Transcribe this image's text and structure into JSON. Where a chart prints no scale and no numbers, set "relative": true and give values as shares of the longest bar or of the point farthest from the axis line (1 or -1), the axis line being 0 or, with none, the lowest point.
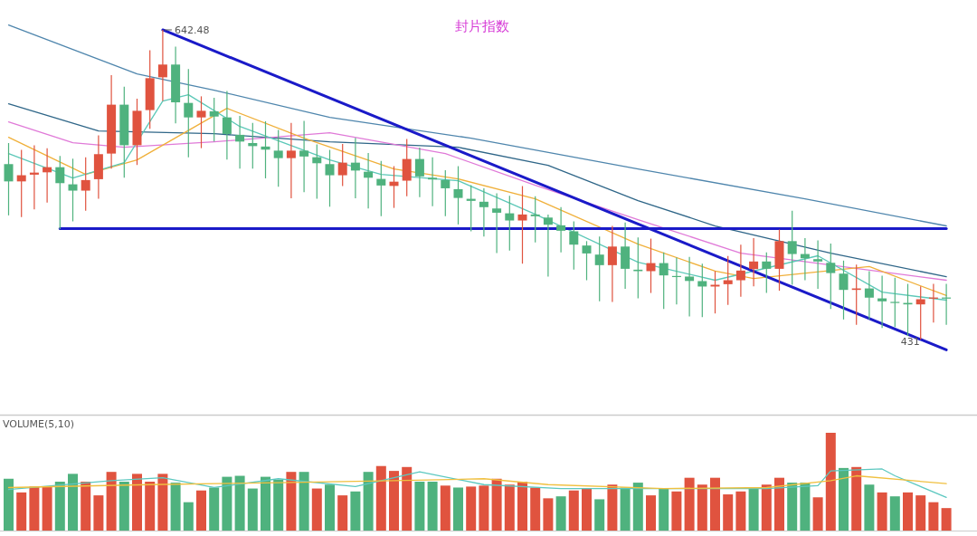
{
  "chart_data": [
    {
      "type": "candlestick",
      "title": "封片指数",
      "categories": [
        null,
        null,
        null,
        null,
        null,
        null,
        null,
        null,
        null,
        null,
        null,
        null,
        null,
        null,
        null,
        null,
        null,
        null,
        null,
        null,
        null,
        null,
        null,
        null,
        null,
        null,
        null,
        null,
        null,
        null,
        null,
        null,
        null,
        null,
        null,
        null,
        null,
        null,
        null,
        null,
        null,
        null,
        null,
        null,
        null,
        null,
        null,
        null,
        null,
        null,
        null,
        null,
        null,
        null,
        null,
        null,
        null,
        null,
        null,
        null,
        null,
        null,
        null,
        null,
        null,
        null,
        null,
        null,
        null,
        null,
        null,
        null,
        null,
        null
      ],
      "ohlc": [
        [
          550.8,
          565.2,
          515.8,
          539.0
        ],
        [
          539.0,
          560.5,
          514.7,
          543.2
        ],
        [
          543.6,
          563.7,
          519.9,
          545.0
        ],
        [
          545.2,
          561.7,
          524.6,
          548.7
        ],
        [
          548.7,
          556.3,
          506.5,
          537.8
        ],
        [
          537.0,
          554.5,
          511.7,
          532.7
        ],
        [
          532.7,
          555.5,
          518.9,
          539.9
        ],
        [
          540.5,
          570.4,
          527.1,
          557.6
        ],
        [
          558.0,
          611.6,
          547.7,
          591.4
        ],
        [
          591.4,
          603.7,
          541.5,
          563.7
        ],
        [
          563.7,
          595.5,
          550.2,
          587.2
        ],
        [
          587.7,
          628.5,
          574.9,
          609.5
        ],
        [
          610.1,
          642.48,
          594.0,
          618.8
        ],
        [
          618.8,
          631.1,
          578.6,
          593.0
        ],
        [
          592.6,
          615.7,
          555.5,
          582.7
        ],
        [
          582.7,
          597.1,
          561.7,
          587.2
        ],
        [
          586.9,
          596.1,
          566.2,
          583.3
        ],
        [
          582.7,
          600.8,
          553.9,
          571.4
        ],
        [
          570.8,
          583.8,
          547.7,
          566.2
        ],
        [
          565.2,
          579.0,
          547.7,
          563.1
        ],
        [
          562.8,
          580.1,
          541.1,
          560.7
        ],
        [
          560.0,
          574.1,
          535.3,
          554.9
        ],
        [
          554.9,
          579.0,
          527.5,
          560.0
        ],
        [
          560.0,
          580.3,
          531.6,
          556.0
        ],
        [
          555.5,
          564.2,
          527.1,
          551.4
        ],
        [
          550.8,
          560.5,
          521.7,
          543.2
        ],
        [
          543.2,
          564.6,
          535.8,
          551.8
        ],
        [
          551.8,
          568.7,
          527.5,
          546.4
        ],
        [
          545.6,
          558.4,
          520.5,
          541.5
        ],
        [
          540.7,
          552.9,
          515.2,
          536.2
        ],
        [
          535.9,
          549.4,
          520.9,
          538.8
        ],
        [
          539.5,
          567.9,
          528.8,
          554.3
        ],
        [
          554.3,
          562.1,
          528.2,
          542.4
        ],
        [
          541.5,
          555.5,
          522.0,
          540.3
        ],
        [
          539.9,
          546.7,
          515.2,
          534.3
        ],
        [
          533.7,
          549.4,
          509.6,
          527.7
        ],
        [
          527.1,
          536.4,
          504.9,
          525.7
        ],
        [
          525.1,
          534.3,
          501.3,
          521.4
        ],
        [
          520.5,
          530.8,
          490.0,
          517.6
        ],
        [
          517.2,
          529.1,
          491.7,
          512.3
        ],
        [
          512.3,
          535.8,
          482.8,
          516.4
        ],
        [
          516.4,
          528.8,
          497.3,
          515.2
        ],
        [
          514.3,
          516.4,
          474.0,
          509.4
        ],
        [
          509.0,
          521.4,
          490.5,
          505.3
        ],
        [
          504.9,
          511.7,
          478.7,
          495.8
        ],
        [
          495.2,
          498.2,
          471.5,
          489.8
        ],
        [
          489.0,
          501.3,
          457.1,
          481.8
        ],
        [
          481.8,
          508.6,
          456.7,
          494.5
        ],
        [
          494.5,
          511.0,
          465.7,
          479.3
        ],
        [
          478.7,
          500.7,
          459.1,
          477.7
        ],
        [
          477.7,
          499.9,
          462.8,
          483.2
        ],
        [
          483.2,
          490.5,
          451.9,
          474.8
        ],
        [
          474.4,
          486.9,
          455.0,
          474.0
        ],
        [
          474.0,
          487.5,
          446.8,
          471.0
        ],
        [
          470.9,
          482.8,
          446.3,
          467.2
        ],
        [
          467.2,
          477.7,
          448.8,
          468.4
        ],
        [
          468.8,
          488.0,
          454.6,
          471.5
        ],
        [
          471.5,
          495.8,
          460.2,
          478.1
        ],
        [
          479.1,
          500.3,
          467.3,
          484.3
        ],
        [
          484.3,
          490.5,
          462.8,
          479.3
        ],
        [
          479.3,
          506.1,
          464.3,
          498.2
        ],
        [
          498.2,
          518.9,
          468.4,
          489.4
        ],
        [
          489.4,
          500.3,
          471.5,
          486.5
        ],
        [
          485.9,
          498.7,
          465.7,
          484.3
        ],
        [
          483.4,
          496.6,
          451.9,
          476.4
        ],
        [
          476.0,
          484.9,
          444.7,
          464.9
        ],
        [
          464.9,
          482.2,
          441.0,
          465.9
        ],
        [
          465.9,
          477.7,
          444.7,
          459.6
        ],
        [
          459.1,
          474.6,
          438.9,
          457.1
        ],
        [
          456.7,
          473.2,
          439.5,
          456.5
        ],
        [
          456.0,
          469.0,
          433.4,
          455.0
        ],
        [
          455.0,
          467.3,
          431,
          458.5
        ],
        [
          458.9,
          469.0,
          442.6,
          459.7
        ],
        [
          459.7,
          469.0,
          441.0,
          459.3
        ]
      ],
      "colors": [
        "#4fb27e",
        "#e0533f",
        "#e0533f",
        "#e0533f",
        "#4fb27e",
        "#4fb27e",
        "#e0533f",
        "#e0533f",
        "#e0533f",
        "#4fb27e",
        "#e0533f",
        "#e0533f",
        "#e0533f",
        "#4fb27e",
        "#4fb27e",
        "#e0533f",
        "#4fb27e",
        "#4fb27e",
        "#4fb27e",
        "#4fb27e",
        "#4fb27e",
        "#4fb27e",
        "#e0533f",
        "#4fb27e",
        "#4fb27e",
        "#4fb27e",
        "#e0533f",
        "#4fb27e",
        "#4fb27e",
        "#4fb27e",
        "#e0533f",
        "#e0533f",
        "#4fb27e",
        "#4fb27e",
        "#4fb27e",
        "#4fb27e",
        "#4fb27e",
        "#4fb27e",
        "#4fb27e",
        "#4fb27e",
        "#e0533f",
        "#4fb27e",
        "#4fb27e",
        "#4fb27e",
        "#4fb27e",
        "#4fb27e",
        "#4fb27e",
        "#e0533f",
        "#4fb27e",
        "#4fb27e",
        "#e0533f",
        "#4fb27e",
        "#4fb27e",
        "#4fb27e",
        "#4fb27e",
        "#e0533f",
        "#e0533f",
        "#e0533f",
        "#e0533f",
        "#4fb27e",
        "#e0533f",
        "#4fb27e",
        "#4fb27e",
        "#4fb27e",
        "#4fb27e",
        "#4fb27e",
        "#e0533f",
        "#4fb27e",
        "#4fb27e",
        "#4fb27e",
        "#4fb27e",
        "#e0533f",
        "#e0533f",
        "#4fb27e"
      ],
      "series": [
        {
          "type": "line",
          "color": "#4f86ad",
          "values": [
            645.8,
            null,
            null,
            null,
            null,
            null,
            null,
            null,
            null,
            null,
            612.4,
            null,
            null,
            null,
            null,
            null,
            601.3,
            null,
            null,
            null,
            null,
            null,
            null,
            null,
            null,
            582.7,
            null,
            null,
            null,
            null,
            null,
            null,
            null,
            null,
            null,
            null,
            568.5,
            null,
            null,
            null,
            null,
            null,
            null,
            null,
            null,
            null,
            null,
            null,
            null,
            547.5,
            null,
            null,
            null,
            null,
            null,
            null,
            null,
            null,
            null,
            null,
            null,
            null,
            527.1,
            null,
            null,
            null,
            null,
            null,
            null,
            null,
            null,
            null,
            null,
            508.6
          ]
        },
        {
          "type": "line",
          "color": "#2f6688",
          "values": [
            592.0,
            null,
            null,
            null,
            null,
            null,
            null,
            573.5,
            null,
            null,
            null,
            null,
            null,
            null,
            null,
            null,
            571.6,
            null,
            null,
            null,
            null,
            null,
            null,
            null,
            null,
            566.0,
            null,
            null,
            null,
            null,
            null,
            null,
            null,
            null,
            null,
            562.3,
            null,
            null,
            null,
            null,
            null,
            null,
            550.0,
            null,
            null,
            null,
            null,
            null,
            null,
            525.9,
            null,
            null,
            null,
            null,
            null,
            508.6,
            null,
            null,
            null,
            null,
            null,
            null,
            null,
            null,
            490.0,
            null,
            null,
            null,
            null,
            null,
            null,
            null,
            null,
            473.9
          ]
        },
        {
          "type": "line",
          "color": "#e07ad8",
          "values": [
            579.6,
            null,
            null,
            null,
            null,
            565.4,
            null,
            null,
            null,
            562.3,
            null,
            null,
            null,
            null,
            null,
            null,
            566.0,
            null,
            null,
            null,
            null,
            null,
            null,
            null,
            null,
            572.2,
            null,
            null,
            null,
            null,
            null,
            null,
            null,
            null,
            558.0,
            null,
            null,
            null,
            null,
            null,
            null,
            536.4,
            null,
            null,
            null,
            null,
            null,
            null,
            null,
            512.9,
            null,
            null,
            null,
            null,
            null,
            null,
            null,
            490.0,
            null,
            null,
            null,
            null,
            null,
            null,
            null,
            null,
            null,
            null,
            null,
            null,
            null,
            null,
            null,
            471.5
          ]
        },
        {
          "type": "line",
          "color": "#f0b03a",
          "values": [
            569.1,
            null,
            null,
            null,
            null,
            null,
            543.8,
            null,
            null,
            null,
            553.7,
            null,
            null,
            null,
            null,
            null,
            null,
            588.9,
            null,
            null,
            null,
            null,
            null,
            568.5,
            null,
            null,
            null,
            null,
            null,
            null,
            547.5,
            null,
            null,
            null,
            null,
            540.7,
            null,
            null,
            null,
            null,
            null,
            527.1,
            null,
            null,
            null,
            null,
            null,
            null,
            null,
            496.2,
            null,
            null,
            null,
            null,
            null,
            477.7,
            null,
            null,
            472.7,
            null,
            null,
            null,
            null,
            null,
            null,
            null,
            null,
            480.8,
            null,
            null,
            null,
            null,
            null,
            461.0
          ]
        },
        {
          "type": "line",
          "color": "#5cc8b8",
          "values": [
            558.0,
            null,
            null,
            null,
            null,
            541.3,
            null,
            null,
            null,
            551.8,
            null,
            null,
            593.8,
            null,
            598.2,
            null,
            null,
            null,
            576.5,
            null,
            null,
            null,
            null,
            null,
            null,
            553.7,
            null,
            null,
            null,
            543.8,
            null,
            null,
            null,
            null,
            null,
            539.5,
            null,
            null,
            null,
            null,
            null,
            516.6,
            null,
            null,
            null,
            null,
            null,
            null,
            null,
            483.8,
            null,
            null,
            null,
            null,
            null,
            471.5,
            null,
            null,
            null,
            null,
            null,
            null,
            null,
            488.2,
            null,
            null,
            null,
            null,
            463.4,
            null,
            null,
            null,
            null,
            457.9
          ]
        },
        {
          "type": "line",
          "color": "#1a1ac8",
          "values": [
            null,
            null,
            null,
            null,
            null,
            null,
            null,
            null,
            null,
            null,
            null,
            null,
            642.5,
            null,
            null,
            null,
            null,
            null,
            null,
            null,
            null,
            null,
            null,
            null,
            null,
            null,
            null,
            null,
            null,
            null,
            null,
            null,
            null,
            null,
            null,
            null,
            null,
            null,
            null,
            null,
            null,
            null,
            null,
            null,
            null,
            null,
            null,
            null,
            null,
            null,
            null,
            null,
            null,
            null,
            null,
            null,
            null,
            null,
            null,
            null,
            null,
            null,
            null,
            null,
            null,
            null,
            null,
            null,
            null,
            null,
            null,
            null,
            null,
            423.9
          ]
        },
        {
          "type": "line",
          "color": "#1a1ac8",
          "values": [
            null,
            null,
            null,
            null,
            506.7,
            null,
            null,
            null,
            null,
            null,
            null,
            null,
            null,
            null,
            null,
            null,
            null,
            null,
            null,
            null,
            null,
            null,
            null,
            null,
            null,
            null,
            null,
            null,
            null,
            null,
            null,
            null,
            null,
            null,
            null,
            null,
            null,
            null,
            null,
            null,
            null,
            null,
            null,
            null,
            null,
            null,
            null,
            null,
            null,
            null,
            null,
            null,
            null,
            null,
            null,
            null,
            null,
            null,
            null,
            null,
            null,
            null,
            null,
            null,
            null,
            null,
            null,
            null,
            null,
            null,
            null,
            null,
            null,
            506.7
          ]
        }
      ],
      "annotations": [
        "642.48",
        "431"
      ]
    },
    {
      "type": "bar",
      "title": "VOLUME(5,10)",
      "relative": true,
      "categories": [
        null,
        null,
        null,
        null,
        null,
        null,
        null,
        null,
        null,
        null,
        null,
        null,
        null,
        null,
        null,
        null,
        null,
        null,
        null,
        null,
        null,
        null,
        null,
        null,
        null,
        null,
        null,
        null,
        null,
        null,
        null,
        null,
        null,
        null,
        null,
        null,
        null,
        null,
        null,
        null,
        null,
        null,
        null,
        null,
        null,
        null,
        null,
        null,
        null,
        null,
        null,
        null,
        null,
        null,
        null,
        null,
        null,
        null,
        null,
        null,
        null,
        null,
        null,
        null,
        null,
        null,
        null,
        null,
        null,
        null,
        null,
        null,
        null,
        null
      ],
      "series": [
        {
          "type": "bar",
          "values": [
            0.53,
            0.39,
            0.45,
            0.45,
            0.5,
            0.58,
            0.5,
            0.36,
            0.6,
            0.5,
            0.58,
            0.5,
            0.58,
            0.49,
            0.29,
            0.41,
            0.44,
            0.55,
            0.56,
            0.43,
            0.55,
            0.52,
            0.6,
            0.6,
            0.43,
            0.47,
            0.36,
            0.4,
            0.6,
            0.66,
            0.61,
            0.65,
            0.5,
            0.5,
            0.46,
            0.44,
            0.45,
            0.46,
            0.53,
            0.47,
            0.5,
            0.44,
            0.33,
            0.35,
            0.41,
            0.43,
            0.32,
            0.47,
            0.44,
            0.49,
            0.36,
            0.43,
            0.4,
            0.54,
            0.47,
            0.54,
            0.37,
            0.4,
            0.43,
            0.47,
            0.54,
            0.49,
            0.49,
            0.34,
            1,
            0.64,
            0.65,
            0.47,
            0.39,
            0.35,
            0.39,
            0.36,
            0.29,
            0.23
          ],
          "colors": [
            "#4fb27e",
            "#e0533f",
            "#e0533f",
            "#e0533f",
            "#4fb27e",
            "#4fb27e",
            "#e0533f",
            "#e0533f",
            "#e0533f",
            "#4fb27e",
            "#e0533f",
            "#e0533f",
            "#e0533f",
            "#4fb27e",
            "#4fb27e",
            "#e0533f",
            "#4fb27e",
            "#4fb27e",
            "#4fb27e",
            "#4fb27e",
            "#4fb27e",
            "#4fb27e",
            "#e0533f",
            "#4fb27e",
            "#e0533f",
            "#4fb27e",
            "#e0533f",
            "#4fb27e",
            "#4fb27e",
            "#e0533f",
            "#e0533f",
            "#e0533f",
            "#4fb27e",
            "#4fb27e",
            "#e0533f",
            "#4fb27e",
            "#e0533f",
            "#e0533f",
            "#e0533f",
            "#e0533f",
            "#e0533f",
            "#e0533f",
            "#e0533f",
            "#4fb27e",
            "#e0533f",
            "#e0533f",
            "#4fb27e",
            "#e0533f",
            "#4fb27e",
            "#4fb27e",
            "#e0533f",
            "#4fb27e",
            "#e0533f",
            "#e0533f",
            "#e0533f",
            "#e0533f",
            "#e0533f",
            "#e0533f",
            "#4fb27e",
            "#e0533f",
            "#e0533f",
            "#4fb27e",
            "#4fb27e",
            "#e0533f",
            "#e0533f",
            "#4fb27e",
            "#e0533f",
            "#4fb27e",
            "#e0533f",
            "#4fb27e",
            "#e0533f",
            "#e0533f",
            "#e0533f",
            "#e0533f"
          ]
        },
        {
          "type": "line",
          "color": "#5cc8c0",
          "values": [
            0.42,
            null,
            null,
            null,
            null,
            null,
            null,
            null,
            0.51,
            null,
            null,
            null,
            0.54,
            null,
            null,
            null,
            0.44,
            null,
            null,
            null,
            null,
            0.53,
            null,
            null,
            null,
            null,
            null,
            0.45,
            null,
            null,
            null,
            null,
            0.6,
            null,
            null,
            null,
            null,
            0.47,
            null,
            null,
            null,
            null,
            null,
            0.43,
            null,
            null,
            null,
            null,
            null,
            null,
            null,
            0.43,
            null,
            null,
            null,
            null,
            null,
            null,
            null,
            0.43,
            null,
            null,
            null,
            0.46,
            0.61,
            null,
            null,
            null,
            0.63,
            0.56,
            null,
            null,
            null,
            0.34
          ]
        },
        {
          "type": "line",
          "color": "#f0c040",
          "values": [
            0.44,
            null,
            null,
            null,
            null,
            null,
            null,
            null,
            null,
            null,
            null,
            0.47,
            null,
            null,
            null,
            null,
            null,
            null,
            null,
            null,
            null,
            0.49,
            null,
            null,
            null,
            null,
            null,
            null,
            null,
            null,
            0.51,
            null,
            null,
            null,
            null,
            null,
            null,
            0.53,
            null,
            null,
            null,
            null,
            0.47,
            null,
            null,
            null,
            null,
            null,
            null,
            null,
            null,
            0.43,
            null,
            null,
            null,
            null,
            null,
            null,
            null,
            0.44,
            null,
            null,
            null,
            null,
            0.51,
            null,
            0.56,
            null,
            null,
            null,
            null,
            null,
            null,
            0.48
          ]
        }
      ]
    }
  ]
}
